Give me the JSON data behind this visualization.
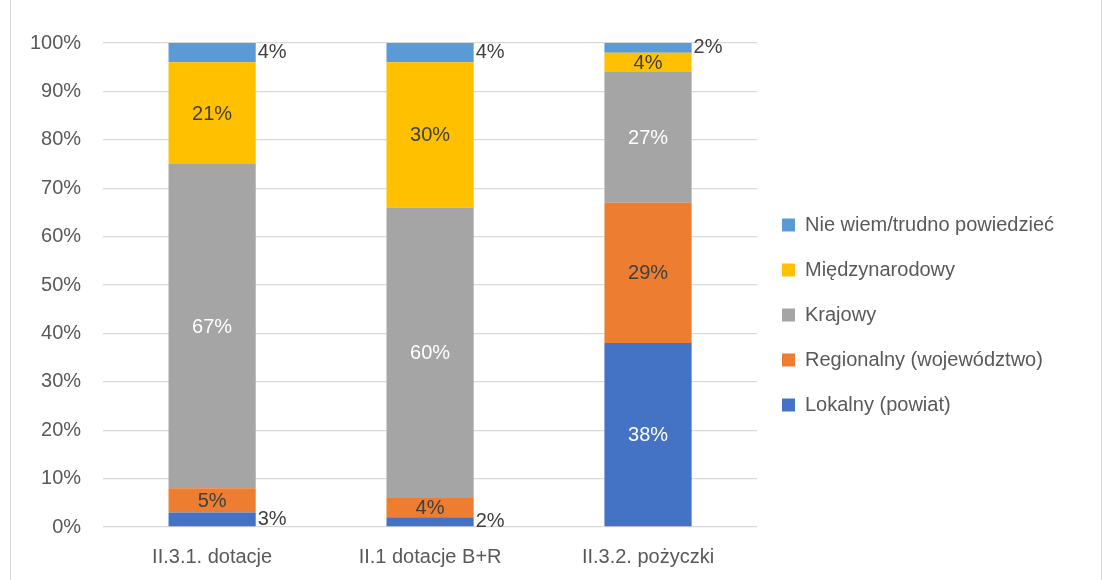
{
  "chart_data": {
    "type": "bar",
    "stacked": true,
    "categories": [
      "II.3.1. dotacje",
      "II.1 dotacje B+R",
      "II.3.2. pożyczki"
    ],
    "series": [
      {
        "name": "Lokalny (powiat)",
        "color": "#4472c4",
        "values": [
          3,
          2,
          38
        ],
        "value_labels": [
          "3%",
          "2%",
          "38%"
        ]
      },
      {
        "name": "Regionalny (województwo)",
        "color": "#ed7d31",
        "values": [
          5,
          4,
          29
        ],
        "value_labels": [
          "5%",
          "4%",
          "29%"
        ]
      },
      {
        "name": "Krajowy",
        "color": "#a5a5a5",
        "values": [
          67,
          60,
          27
        ],
        "value_labels": [
          "67%",
          "60%",
          "27%"
        ]
      },
      {
        "name": "Międzynarodowy",
        "color": "#ffc000",
        "values": [
          21,
          30,
          4
        ],
        "value_labels": [
          "21%",
          "30%",
          "4%"
        ]
      },
      {
        "name": "Nie wiem/trudno powiedzieć",
        "color": "#5b9bd5",
        "values": [
          4,
          4,
          2
        ],
        "value_labels": [
          "4%",
          "4%",
          "2%"
        ]
      }
    ],
    "ylim": [
      0,
      100
    ],
    "yticks": [
      {
        "value": 0,
        "label": "0%"
      },
      {
        "value": 10,
        "label": "10%"
      },
      {
        "value": 20,
        "label": "20%"
      },
      {
        "value": 30,
        "label": "30%"
      },
      {
        "value": 40,
        "label": "40%"
      },
      {
        "value": 50,
        "label": "50%"
      },
      {
        "value": 60,
        "label": "60%"
      },
      {
        "value": 70,
        "label": "70%"
      },
      {
        "value": 80,
        "label": "80%"
      },
      {
        "value": 90,
        "label": "90%"
      },
      {
        "value": 100,
        "label": "100%"
      }
    ],
    "grid": "y",
    "legend": "right"
  }
}
